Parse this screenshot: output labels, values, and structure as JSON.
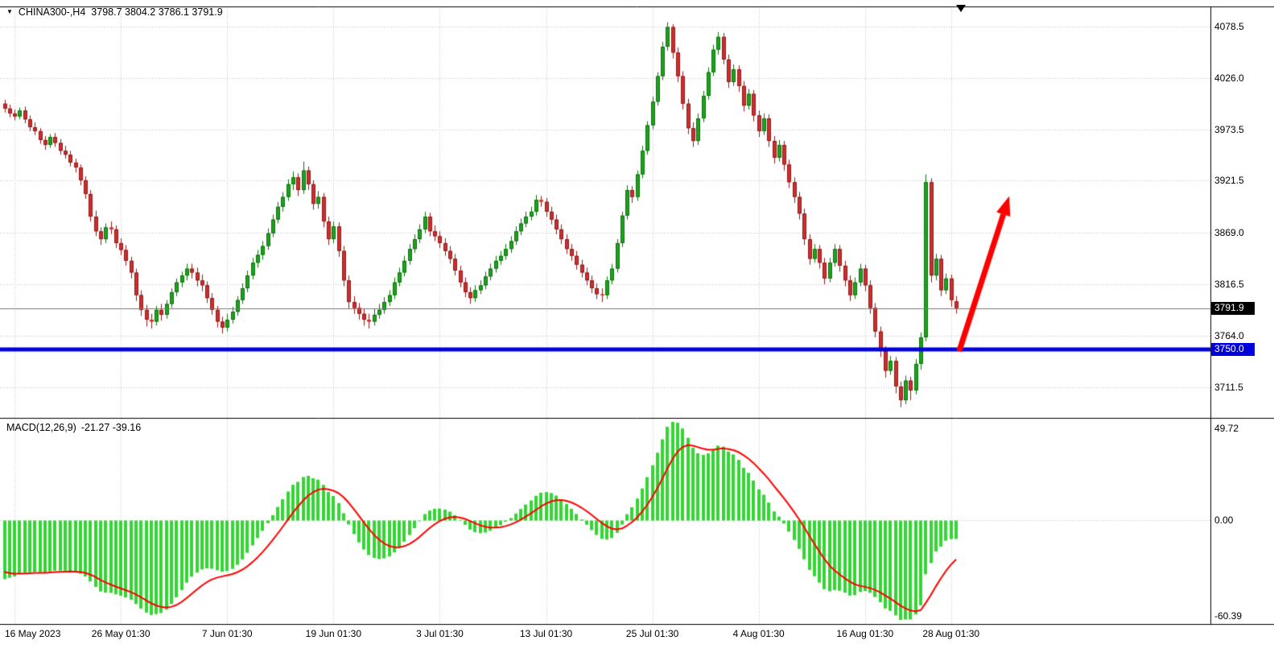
{
  "header": {
    "marker_icon": "▼",
    "symbol": "CHINA300-,H4",
    "ohlc_text": "3798.7 3804.2 3786.1 3791.9"
  },
  "indicator": {
    "name": "MACD(12,26,9)",
    "values": "-21.27 -39.16"
  },
  "price_axis": {
    "labels": [
      {
        "text": "4078.5",
        "value": 4078.5
      },
      {
        "text": "4026.0",
        "value": 4026.0
      },
      {
        "text": "3973.5",
        "value": 3973.5
      },
      {
        "text": "3921.5",
        "value": 3921.5
      },
      {
        "text": "3869.0",
        "value": 3869.0
      },
      {
        "text": "3816.5",
        "value": 3816.5
      },
      {
        "text": "3764.0",
        "value": 3764.0
      },
      {
        "text": "3711.5",
        "value": 3711.5
      }
    ],
    "current": {
      "text": "3791.9",
      "value": 3791.9,
      "bg": "#000000",
      "fg": "#ffffff"
    },
    "hline": {
      "text": "3750.0",
      "value": 3750.0,
      "bg": "#0000dd",
      "fg": "#ffffff"
    }
  },
  "macd_axis": {
    "max_label": "49.72",
    "zero_label": "0.00",
    "min_label": "-60.39"
  },
  "time_axis": {
    "ticks": [
      {
        "bar": 2,
        "label": "16 May 2023"
      },
      {
        "bar": 23,
        "label": "26 May 01:30"
      },
      {
        "bar": 44,
        "label": "7 Jun 01:30"
      },
      {
        "bar": 65,
        "label": "19 Jun 01:30"
      },
      {
        "bar": 86,
        "label": "3 Jul 01:30"
      },
      {
        "bar": 107,
        "label": "13 Jul 01:30"
      },
      {
        "bar": 128,
        "label": "25 Jul 01:30"
      },
      {
        "bar": 149,
        "label": "4 Aug 01:30"
      },
      {
        "bar": 170,
        "label": "16 Aug 01:30"
      },
      {
        "bar": 187,
        "label": "28 Aug 01:30"
      }
    ]
  },
  "colors": {
    "bull_body": "#1fa31f",
    "bull_edge": "#0b700b",
    "bear_body": "#cf2e2e",
    "bear_edge": "#8f1a1a",
    "histogram": "#33d633",
    "signal_line": "#ff0000",
    "grid": "#c3c3c3",
    "pane_border": "#000000",
    "current_price_line": "#777777"
  },
  "chart_data": {
    "type": "candlestick",
    "title": "CHINA300- H4 candlestick chart with MACD(12,26,9) and support line 3750.0",
    "symbol": "CHINA300-",
    "timeframe": "H4",
    "current_bar_ohlc": {
      "open": 3798.7,
      "high": 3804.2,
      "low": 3786.1,
      "close": 3791.9
    },
    "y_axis": {
      "min": 3680,
      "max": 4099,
      "gridlines": [
        4078.5,
        4026.0,
        3973.5,
        3921.5,
        3869.0,
        3816.5,
        3764.0,
        3711.5
      ]
    },
    "macd": {
      "fast": 12,
      "slow": 26,
      "signal_period": 9,
      "last_macd": -21.27,
      "last_signal": -39.16,
      "axis_max": 49.72,
      "axis_min": -60.39
    },
    "horizontal_line": {
      "price": 3750.0,
      "color": "#0000dd",
      "width": 5
    },
    "trend_arrow": {
      "from_bar": 188.6,
      "from_price": 3748,
      "to_bar": 198.5,
      "to_price": 3906,
      "color": "#ff0000"
    },
    "candles_ohlc": [
      [
        4000,
        4004,
        3991,
        3995
      ],
      [
        3995,
        3999,
        3986,
        3990
      ],
      [
        3990,
        3994,
        3983,
        3987
      ],
      [
        3987,
        3996,
        3984,
        3993
      ],
      [
        3993,
        3997,
        3980,
        3984
      ],
      [
        3984,
        3988,
        3972,
        3976
      ],
      [
        3976,
        3981,
        3968,
        3972
      ],
      [
        3972,
        3975,
        3959,
        3963
      ],
      [
        3963,
        3967,
        3953,
        3958
      ],
      [
        3958,
        3969,
        3955,
        3966
      ],
      [
        3966,
        3970,
        3956,
        3960
      ],
      [
        3960,
        3964,
        3948,
        3952
      ],
      [
        3952,
        3957,
        3944,
        3948
      ],
      [
        3948,
        3952,
        3936,
        3940
      ],
      [
        3940,
        3944,
        3930,
        3935
      ],
      [
        3935,
        3938,
        3917,
        3922
      ],
      [
        3922,
        3926,
        3903,
        3908
      ],
      [
        3908,
        3912,
        3880,
        3885
      ],
      [
        3885,
        3891,
        3865,
        3870
      ],
      [
        3870,
        3874,
        3856,
        3862
      ],
      [
        3862,
        3878,
        3858,
        3874
      ],
      [
        3874,
        3880,
        3867,
        3872
      ],
      [
        3872,
        3876,
        3853,
        3858
      ],
      [
        3858,
        3863,
        3846,
        3851
      ],
      [
        3851,
        3856,
        3835,
        3840
      ],
      [
        3840,
        3844,
        3822,
        3828
      ],
      [
        3828,
        3832,
        3799,
        3805
      ],
      [
        3805,
        3810,
        3784,
        3790
      ],
      [
        3790,
        3795,
        3773,
        3780
      ],
      [
        3780,
        3786,
        3771,
        3778
      ],
      [
        3778,
        3794,
        3774,
        3790
      ],
      [
        3790,
        3796,
        3779,
        3785
      ],
      [
        3785,
        3800,
        3781,
        3796
      ],
      [
        3796,
        3812,
        3792,
        3808
      ],
      [
        3808,
        3822,
        3804,
        3818
      ],
      [
        3818,
        3829,
        3813,
        3825
      ],
      [
        3825,
        3837,
        3820,
        3832
      ],
      [
        3832,
        3837,
        3822,
        3828
      ],
      [
        3828,
        3833,
        3814,
        3820
      ],
      [
        3820,
        3826,
        3809,
        3815
      ],
      [
        3815,
        3819,
        3797,
        3802
      ],
      [
        3802,
        3807,
        3785,
        3790
      ],
      [
        3790,
        3794,
        3772,
        3778
      ],
      [
        3778,
        3783,
        3766,
        3772
      ],
      [
        3772,
        3786,
        3768,
        3780
      ],
      [
        3780,
        3793,
        3776,
        3788
      ],
      [
        3788,
        3804,
        3784,
        3800
      ],
      [
        3800,
        3817,
        3796,
        3812
      ],
      [
        3812,
        3830,
        3808,
        3825
      ],
      [
        3825,
        3843,
        3821,
        3838
      ],
      [
        3838,
        3851,
        3833,
        3846
      ],
      [
        3846,
        3860,
        3841,
        3855
      ],
      [
        3855,
        3873,
        3851,
        3868
      ],
      [
        3868,
        3887,
        3864,
        3882
      ],
      [
        3882,
        3900,
        3878,
        3895
      ],
      [
        3895,
        3910,
        3890,
        3905
      ],
      [
        3905,
        3923,
        3901,
        3918
      ],
      [
        3918,
        3931,
        3912,
        3925
      ],
      [
        3925,
        3929,
        3906,
        3912
      ],
      [
        3912,
        3941,
        3908,
        3932
      ],
      [
        3932,
        3936,
        3912,
        3918
      ],
      [
        3918,
        3922,
        3892,
        3898
      ],
      [
        3898,
        3911,
        3893,
        3905
      ],
      [
        3905,
        3909,
        3874,
        3880
      ],
      [
        3880,
        3885,
        3856,
        3862
      ],
      [
        3862,
        3880,
        3858,
        3875
      ],
      [
        3875,
        3879,
        3844,
        3850
      ],
      [
        3850,
        3855,
        3814,
        3820
      ],
      [
        3820,
        3825,
        3791,
        3798
      ],
      [
        3798,
        3804,
        3786,
        3792
      ],
      [
        3792,
        3797,
        3780,
        3786
      ],
      [
        3786,
        3791,
        3774,
        3780
      ],
      [
        3780,
        3786,
        3771,
        3778
      ],
      [
        3778,
        3791,
        3774,
        3785
      ],
      [
        3785,
        3796,
        3781,
        3790
      ],
      [
        3790,
        3803,
        3786,
        3798
      ],
      [
        3798,
        3810,
        3794,
        3805
      ],
      [
        3805,
        3823,
        3801,
        3818
      ],
      [
        3818,
        3833,
        3814,
        3828
      ],
      [
        3828,
        3845,
        3824,
        3840
      ],
      [
        3840,
        3857,
        3836,
        3852
      ],
      [
        3852,
        3867,
        3848,
        3862
      ],
      [
        3862,
        3877,
        3858,
        3872
      ],
      [
        3872,
        3890,
        3868,
        3885
      ],
      [
        3885,
        3889,
        3865,
        3870
      ],
      [
        3870,
        3876,
        3860,
        3865
      ],
      [
        3865,
        3870,
        3853,
        3858
      ],
      [
        3858,
        3863,
        3845,
        3850
      ],
      [
        3850,
        3855,
        3837,
        3842
      ],
      [
        3842,
        3847,
        3825,
        3830
      ],
      [
        3830,
        3835,
        3813,
        3818
      ],
      [
        3818,
        3823,
        3803,
        3808
      ],
      [
        3808,
        3813,
        3796,
        3802
      ],
      [
        3802,
        3815,
        3798,
        3810
      ],
      [
        3810,
        3820,
        3806,
        3815
      ],
      [
        3815,
        3829,
        3811,
        3824
      ],
      [
        3824,
        3837,
        3820,
        3832
      ],
      [
        3832,
        3845,
        3828,
        3840
      ],
      [
        3840,
        3850,
        3836,
        3845
      ],
      [
        3845,
        3857,
        3841,
        3852
      ],
      [
        3852,
        3865,
        3848,
        3860
      ],
      [
        3860,
        3875,
        3856,
        3870
      ],
      [
        3870,
        3883,
        3866,
        3878
      ],
      [
        3878,
        3890,
        3874,
        3885
      ],
      [
        3885,
        3895,
        3881,
        3890
      ],
      [
        3890,
        3907,
        3886,
        3902
      ],
      [
        3902,
        3906,
        3895,
        3900
      ],
      [
        3900,
        3904,
        3885,
        3890
      ],
      [
        3890,
        3895,
        3877,
        3882
      ],
      [
        3882,
        3887,
        3867,
        3872
      ],
      [
        3872,
        3877,
        3857,
        3862
      ],
      [
        3862,
        3867,
        3847,
        3852
      ],
      [
        3852,
        3857,
        3840,
        3845
      ],
      [
        3845,
        3850,
        3831,
        3836
      ],
      [
        3836,
        3841,
        3823,
        3828
      ],
      [
        3828,
        3833,
        3815,
        3820
      ],
      [
        3820,
        3825,
        3807,
        3812
      ],
      [
        3812,
        3817,
        3801,
        3806
      ],
      [
        3806,
        3812,
        3798,
        3805
      ],
      [
        3805,
        3824,
        3801,
        3820
      ],
      [
        3820,
        3837,
        3816,
        3832
      ],
      [
        3832,
        3862,
        3828,
        3858
      ],
      [
        3858,
        3890,
        3854,
        3886
      ],
      [
        3886,
        3917,
        3882,
        3912
      ],
      [
        3912,
        3916,
        3899,
        3905
      ],
      [
        3905,
        3932,
        3901,
        3928
      ],
      [
        3928,
        3957,
        3924,
        3952
      ],
      [
        3952,
        3982,
        3948,
        3978
      ],
      [
        3978,
        4007,
        3974,
        4002
      ],
      [
        4002,
        4032,
        3998,
        4028
      ],
      [
        4028,
        4063,
        4024,
        4058
      ],
      [
        4058,
        4083,
        4054,
        4078
      ],
      [
        4078,
        4081,
        4046,
        4052
      ],
      [
        4052,
        4057,
        4022,
        4028
      ],
      [
        4028,
        4033,
        3994,
        4000
      ],
      [
        4000,
        4005,
        3969,
        3975
      ],
      [
        3975,
        3981,
        3956,
        3962
      ],
      [
        3962,
        3990,
        3958,
        3985
      ],
      [
        3985,
        4013,
        3981,
        4008
      ],
      [
        4008,
        4037,
        4004,
        4032
      ],
      [
        4032,
        4060,
        4028,
        4055
      ],
      [
        4055,
        4073,
        4050,
        4068
      ],
      [
        4068,
        4072,
        4040,
        4045
      ],
      [
        4045,
        4050,
        4016,
        4022
      ],
      [
        4022,
        4040,
        4018,
        4035
      ],
      [
        4035,
        4039,
        4012,
        4018
      ],
      [
        4018,
        4023,
        3992,
        3998
      ],
      [
        3998,
        4015,
        3994,
        4010
      ],
      [
        4010,
        4014,
        3982,
        3988
      ],
      [
        3988,
        3993,
        3966,
        3972
      ],
      [
        3972,
        3990,
        3968,
        3985
      ],
      [
        3985,
        3989,
        3956,
        3962
      ],
      [
        3962,
        3967,
        3939,
        3945
      ],
      [
        3945,
        3963,
        3941,
        3958
      ],
      [
        3958,
        3962,
        3932,
        3938
      ],
      [
        3938,
        3943,
        3914,
        3920
      ],
      [
        3920,
        3925,
        3899,
        3905
      ],
      [
        3905,
        3910,
        3882,
        3888
      ],
      [
        3888,
        3893,
        3856,
        3862
      ],
      [
        3862,
        3867,
        3836,
        3842
      ],
      [
        3842,
        3857,
        3838,
        3852
      ],
      [
        3852,
        3856,
        3832,
        3838
      ],
      [
        3838,
        3843,
        3816,
        3822
      ],
      [
        3822,
        3843,
        3818,
        3838
      ],
      [
        3838,
        3857,
        3834,
        3852
      ],
      [
        3852,
        3856,
        3829,
        3835
      ],
      [
        3835,
        3840,
        3814,
        3820
      ],
      [
        3820,
        3825,
        3799,
        3805
      ],
      [
        3805,
        3823,
        3801,
        3818
      ],
      [
        3818,
        3837,
        3814,
        3832
      ],
      [
        3832,
        3836,
        3809,
        3815
      ],
      [
        3815,
        3820,
        3786,
        3792
      ],
      [
        3792,
        3797,
        3762,
        3768
      ],
      [
        3768,
        3773,
        3742,
        3748
      ],
      [
        3748,
        3753,
        3721,
        3728
      ],
      [
        3728,
        3743,
        3724,
        3738
      ],
      [
        3738,
        3742,
        3705,
        3712
      ],
      [
        3712,
        3717,
        3691,
        3698
      ],
      [
        3698,
        3723,
        3694,
        3718
      ],
      [
        3718,
        3722,
        3698,
        3708
      ],
      [
        3708,
        3740,
        3704,
        3735
      ],
      [
        3735,
        3767,
        3729,
        3762
      ],
      [
        3762,
        3928,
        3758,
        3920
      ],
      [
        3920,
        3924,
        3818,
        3825
      ],
      [
        3825,
        3847,
        3820,
        3842
      ],
      [
        3842,
        3846,
        3804,
        3810
      ],
      [
        3810,
        3827,
        3806,
        3822
      ],
      [
        3822,
        3826,
        3793,
        3800
      ],
      [
        3798.7,
        3804.2,
        3786.1,
        3791.9
      ]
    ]
  }
}
